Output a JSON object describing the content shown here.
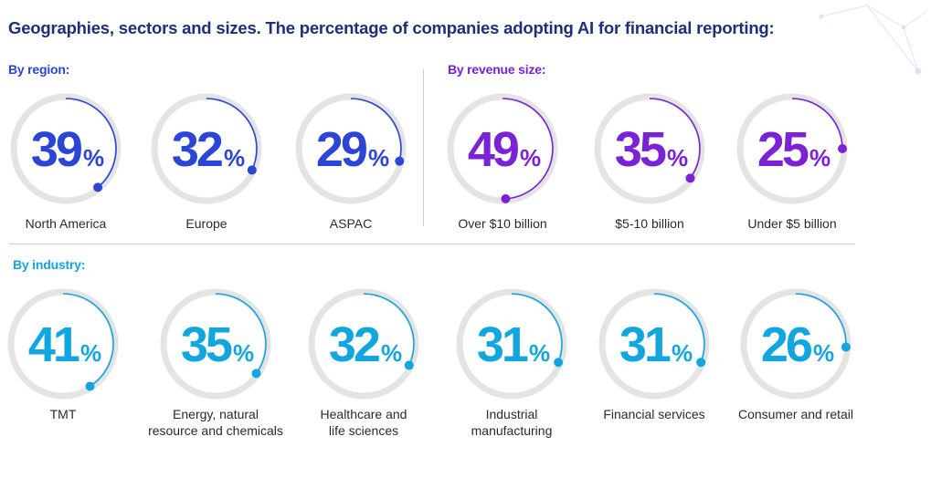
{
  "title": "Geographies, sectors and sizes. The percentage of companies adopting AI for financial reporting:",
  "sections": {
    "region": "By region:",
    "revenue": "By revenue size:",
    "industry": "By industry:"
  },
  "colors": {
    "region": "#2b45d6",
    "revenue": "#7b22d6",
    "industry": "#12a6e0",
    "ring_track": "#e4e4e4",
    "title": "#1e2f7a"
  },
  "chart_data": [
    {
      "type": "donut-gauge",
      "group": "region",
      "unit": "%",
      "ylim": [
        0,
        100
      ],
      "categories": [
        "North America",
        "Europe",
        "ASPAC"
      ],
      "values": [
        39,
        32,
        29
      ]
    },
    {
      "type": "donut-gauge",
      "group": "revenue",
      "unit": "%",
      "ylim": [
        0,
        100
      ],
      "categories": [
        "Over $10 billion",
        "$5-10 billion",
        "Under $5 billion"
      ],
      "values": [
        49,
        35,
        25
      ]
    },
    {
      "type": "donut-gauge",
      "group": "industry",
      "unit": "%",
      "ylim": [
        0,
        100
      ],
      "categories": [
        "TMT",
        "Energy, natural resource and chemicals",
        "Healthcare and life sciences",
        "Industrial manufacturing",
        "Financial services",
        "Consumer and retail"
      ],
      "values": [
        41,
        35,
        32,
        31,
        31,
        26
      ]
    }
  ]
}
